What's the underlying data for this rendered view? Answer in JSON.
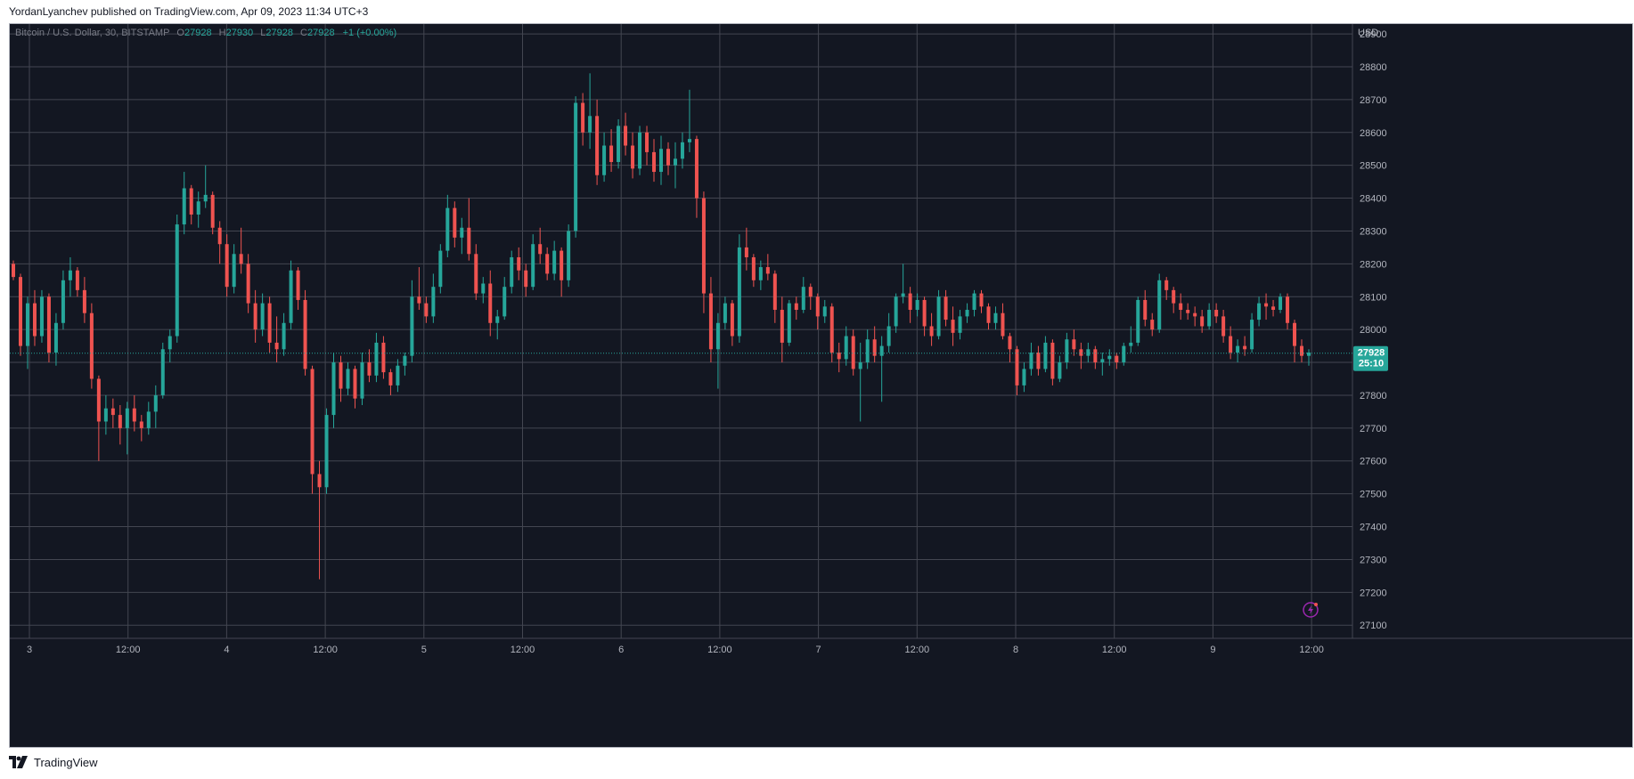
{
  "published_line": "YordanLyanchev published on TradingView.com, Apr 09, 2023 11:34 UTC+3",
  "footer": {
    "brand": "TradingView"
  },
  "colors": {
    "background": "#131722",
    "grid": "#434651",
    "up": "#26a69a",
    "down": "#ef5350",
    "axis_text": "#b2b5be",
    "price_line": "#26a69a",
    "badge_icon": "#9c27b0"
  },
  "legend": {
    "symbol": "Bitcoin / U.S. Dollar, 30, BITSTAMP",
    "o_label": "O",
    "o_value": "27928",
    "h_label": "H",
    "h_value": "27930",
    "l_label": "L",
    "l_value": "27928",
    "c_label": "C",
    "c_value": "27928",
    "change": "+1 (+0.00%)"
  },
  "price_axis": {
    "currency": "USD",
    "last_price": "27928",
    "countdown": "25:10"
  },
  "chart_data": {
    "type": "candlestick",
    "title": "Bitcoin / U.S. Dollar, 30, BITSTAMP",
    "ylim": [
      27060,
      28930
    ],
    "y_ticks": [
      27100,
      27200,
      27300,
      27400,
      27500,
      27600,
      27700,
      27800,
      27900,
      28000,
      28100,
      28200,
      28300,
      28400,
      28500,
      28600,
      28700,
      28800,
      28900
    ],
    "x_ticks": [
      "3",
      "12:00",
      "4",
      "12:00",
      "5",
      "12:00",
      "6",
      "12:00",
      "7",
      "12:00",
      "8",
      "12:00",
      "9",
      "12:00"
    ],
    "grid": true,
    "last_price": 27928,
    "candles_note_interval": "30",
    "ohlc": [
      [
        28200,
        28210,
        28150,
        28160
      ],
      [
        28160,
        28170,
        27920,
        27950
      ],
      [
        27950,
        28100,
        27880,
        28080
      ],
      [
        28080,
        28120,
        27950,
        27980
      ],
      [
        27980,
        28120,
        27960,
        28100
      ],
      [
        28100,
        28110,
        27900,
        27930
      ],
      [
        27930,
        28050,
        27890,
        28020
      ],
      [
        28020,
        28180,
        28000,
        28150
      ],
      [
        28150,
        28220,
        28100,
        28180
      ],
      [
        28180,
        28190,
        28100,
        28120
      ],
      [
        28120,
        28160,
        28020,
        28050
      ],
      [
        28050,
        28080,
        27820,
        27850
      ],
      [
        27850,
        27860,
        27600,
        27720
      ],
      [
        27720,
        27800,
        27680,
        27760
      ],
      [
        27760,
        27790,
        27700,
        27740
      ],
      [
        27740,
        27770,
        27650,
        27700
      ],
      [
        27700,
        27780,
        27620,
        27760
      ],
      [
        27760,
        27800,
        27690,
        27720
      ],
      [
        27720,
        27740,
        27660,
        27700
      ],
      [
        27700,
        27780,
        27680,
        27750
      ],
      [
        27750,
        27830,
        27700,
        27800
      ],
      [
        27800,
        27960,
        27790,
        27940
      ],
      [
        27940,
        28000,
        27900,
        27980
      ],
      [
        27980,
        28350,
        27960,
        28320
      ],
      [
        28320,
        28480,
        28290,
        28430
      ],
      [
        28430,
        28440,
        28320,
        28350
      ],
      [
        28350,
        28420,
        28310,
        28390
      ],
      [
        28390,
        28500,
        28370,
        28410
      ],
      [
        28410,
        28420,
        28290,
        28310
      ],
      [
        28310,
        28330,
        28200,
        28260
      ],
      [
        28260,
        28290,
        28100,
        28130
      ],
      [
        28130,
        28260,
        28110,
        28230
      ],
      [
        28230,
        28310,
        28170,
        28200
      ],
      [
        28200,
        28230,
        28050,
        28080
      ],
      [
        28080,
        28120,
        27960,
        28000
      ],
      [
        28000,
        28110,
        27980,
        28080
      ],
      [
        28080,
        28100,
        27930,
        27960
      ],
      [
        27960,
        28040,
        27900,
        27940
      ],
      [
        27940,
        28050,
        27920,
        28020
      ],
      [
        28020,
        28210,
        28000,
        28180
      ],
      [
        28180,
        28190,
        28060,
        28090
      ],
      [
        28090,
        28120,
        27860,
        27880
      ],
      [
        27880,
        27890,
        27500,
        27560
      ],
      [
        27560,
        27600,
        27240,
        27520
      ],
      [
        27520,
        27760,
        27500,
        27740
      ],
      [
        27740,
        27930,
        27700,
        27900
      ],
      [
        27900,
        27920,
        27780,
        27820
      ],
      [
        27820,
        27900,
        27800,
        27880
      ],
      [
        27880,
        27890,
        27760,
        27790
      ],
      [
        27790,
        27930,
        27770,
        27900
      ],
      [
        27900,
        27940,
        27840,
        27860
      ],
      [
        27860,
        27990,
        27840,
        27960
      ],
      [
        27960,
        27980,
        27850,
        27870
      ],
      [
        27870,
        27880,
        27800,
        27830
      ],
      [
        27830,
        27910,
        27810,
        27890
      ],
      [
        27890,
        27930,
        27860,
        27920
      ],
      [
        27920,
        28150,
        27900,
        28100
      ],
      [
        28100,
        28190,
        28060,
        28080
      ],
      [
        28080,
        28100,
        28020,
        28040
      ],
      [
        28040,
        28170,
        28020,
        28130
      ],
      [
        28130,
        28260,
        28110,
        28240
      ],
      [
        28240,
        28410,
        28220,
        28370
      ],
      [
        28370,
        28390,
        28250,
        28280
      ],
      [
        28280,
        28340,
        28230,
        28310
      ],
      [
        28310,
        28400,
        28210,
        28230
      ],
      [
        28230,
        28260,
        28090,
        28110
      ],
      [
        28110,
        28160,
        28080,
        28140
      ],
      [
        28140,
        28180,
        27980,
        28020
      ],
      [
        28020,
        28060,
        27970,
        28040
      ],
      [
        28040,
        28160,
        28030,
        28130
      ],
      [
        28130,
        28240,
        28110,
        28220
      ],
      [
        28220,
        28250,
        28150,
        28180
      ],
      [
        28180,
        28200,
        28100,
        28130
      ],
      [
        28130,
        28290,
        28120,
        28260
      ],
      [
        28260,
        28310,
        28200,
        28230
      ],
      [
        28230,
        28250,
        28150,
        28170
      ],
      [
        28170,
        28270,
        28150,
        28240
      ],
      [
        28240,
        28250,
        28100,
        28150
      ],
      [
        28150,
        28320,
        28130,
        28300
      ],
      [
        28300,
        28710,
        28280,
        28690
      ],
      [
        28690,
        28720,
        28560,
        28600
      ],
      [
        28600,
        28780,
        28550,
        28650
      ],
      [
        28650,
        28700,
        28440,
        28470
      ],
      [
        28470,
        28600,
        28450,
        28560
      ],
      [
        28560,
        28610,
        28480,
        28510
      ],
      [
        28510,
        28640,
        28490,
        28620
      ],
      [
        28620,
        28660,
        28530,
        28560
      ],
      [
        28560,
        28600,
        28460,
        28490
      ],
      [
        28490,
        28620,
        28470,
        28600
      ],
      [
        28600,
        28620,
        28500,
        28540
      ],
      [
        28540,
        28580,
        28450,
        28480
      ],
      [
        28480,
        28590,
        28440,
        28550
      ],
      [
        28550,
        28570,
        28470,
        28500
      ],
      [
        28500,
        28570,
        28430,
        28520
      ],
      [
        28520,
        28600,
        28490,
        28570
      ],
      [
        28570,
        28730,
        28540,
        28580
      ],
      [
        28580,
        28590,
        28340,
        28400
      ],
      [
        28400,
        28420,
        28050,
        28110
      ],
      [
        28110,
        28160,
        27900,
        27940
      ],
      [
        27940,
        28050,
        27820,
        28020
      ],
      [
        28020,
        28100,
        28000,
        28080
      ],
      [
        28080,
        28090,
        27950,
        27980
      ],
      [
        27980,
        28290,
        27960,
        28250
      ],
      [
        28250,
        28310,
        28180,
        28220
      ],
      [
        28220,
        28230,
        28130,
        28150
      ],
      [
        28150,
        28210,
        28120,
        28190
      ],
      [
        28190,
        28230,
        28150,
        28170
      ],
      [
        28170,
        28180,
        28020,
        28060
      ],
      [
        28060,
        28100,
        27900,
        27960
      ],
      [
        27960,
        28090,
        27950,
        28080
      ],
      [
        28080,
        28100,
        28030,
        28060
      ],
      [
        28060,
        28160,
        28050,
        28130
      ],
      [
        28130,
        28140,
        28060,
        28100
      ],
      [
        28100,
        28110,
        28000,
        28040
      ],
      [
        28040,
        28090,
        28020,
        28070
      ],
      [
        28070,
        28080,
        27900,
        27930
      ],
      [
        27930,
        27960,
        27870,
        27910
      ],
      [
        27910,
        28010,
        27890,
        27980
      ],
      [
        27980,
        28000,
        27860,
        27880
      ],
      [
        27880,
        27960,
        27720,
        27900
      ],
      [
        27900,
        28000,
        27880,
        27970
      ],
      [
        27970,
        28010,
        27900,
        27920
      ],
      [
        27920,
        27980,
        27780,
        27950
      ],
      [
        27950,
        28050,
        27930,
        28010
      ],
      [
        28010,
        28110,
        27990,
        28100
      ],
      [
        28100,
        28200,
        28080,
        28110
      ],
      [
        28110,
        28130,
        28020,
        28060
      ],
      [
        28060,
        28110,
        28040,
        28090
      ],
      [
        28090,
        28100,
        27980,
        28010
      ],
      [
        28010,
        28050,
        27950,
        27980
      ],
      [
        27980,
        28120,
        27970,
        28100
      ],
      [
        28100,
        28120,
        28010,
        28030
      ],
      [
        28030,
        28070,
        27950,
        27990
      ],
      [
        27990,
        28060,
        27970,
        28040
      ],
      [
        28040,
        28080,
        28020,
        28060
      ],
      [
        28060,
        28120,
        28040,
        28110
      ],
      [
        28110,
        28120,
        28050,
        28070
      ],
      [
        28070,
        28080,
        28000,
        28020
      ],
      [
        28020,
        28070,
        28000,
        28050
      ],
      [
        28050,
        28080,
        27970,
        27980
      ],
      [
        27980,
        27990,
        27900,
        27940
      ],
      [
        27940,
        27950,
        27800,
        27830
      ],
      [
        27830,
        27900,
        27810,
        27880
      ],
      [
        27880,
        27960,
        27860,
        27930
      ],
      [
        27930,
        27950,
        27860,
        27880
      ],
      [
        27880,
        27980,
        27870,
        27960
      ],
      [
        27960,
        27970,
        27830,
        27850
      ],
      [
        27850,
        27920,
        27840,
        27900
      ],
      [
        27900,
        27990,
        27880,
        27970
      ],
      [
        27970,
        28000,
        27920,
        27940
      ],
      [
        27940,
        27960,
        27880,
        27920
      ],
      [
        27920,
        27960,
        27900,
        27940
      ],
      [
        27940,
        27950,
        27880,
        27900
      ],
      [
        27900,
        27930,
        27860,
        27910
      ],
      [
        27910,
        27940,
        27890,
        27920
      ],
      [
        27920,
        27930,
        27880,
        27900
      ],
      [
        27900,
        27960,
        27890,
        27950
      ],
      [
        27950,
        28010,
        27930,
        27960
      ],
      [
        27960,
        28100,
        27950,
        28090
      ],
      [
        28090,
        28120,
        28010,
        28030
      ],
      [
        28030,
        28050,
        27980,
        28000
      ],
      [
        28000,
        28170,
        27990,
        28150
      ],
      [
        28150,
        28160,
        28090,
        28120
      ],
      [
        28120,
        28130,
        28050,
        28080
      ],
      [
        28080,
        28110,
        28030,
        28060
      ],
      [
        28060,
        28080,
        28030,
        28050
      ],
      [
        28050,
        28070,
        28010,
        28040
      ],
      [
        28040,
        28060,
        27990,
        28010
      ],
      [
        28010,
        28080,
        28000,
        28060
      ],
      [
        28060,
        28080,
        28020,
        28040
      ],
      [
        28040,
        28060,
        27960,
        27980
      ],
      [
        27980,
        28010,
        27910,
        27930
      ],
      [
        27930,
        27970,
        27900,
        27950
      ],
      [
        27950,
        27980,
        27920,
        27940
      ],
      [
        27940,
        28050,
        27930,
        28030
      ],
      [
        28030,
        28100,
        28010,
        28080
      ],
      [
        28080,
        28110,
        28030,
        28070
      ],
      [
        28070,
        28090,
        28040,
        28060
      ],
      [
        28060,
        28110,
        28050,
        28100
      ],
      [
        28100,
        28110,
        28000,
        28020
      ],
      [
        28020,
        28030,
        27900,
        27950
      ],
      [
        27950,
        27970,
        27900,
        27920
      ],
      [
        27920,
        27940,
        27890,
        27930
      ]
    ]
  }
}
